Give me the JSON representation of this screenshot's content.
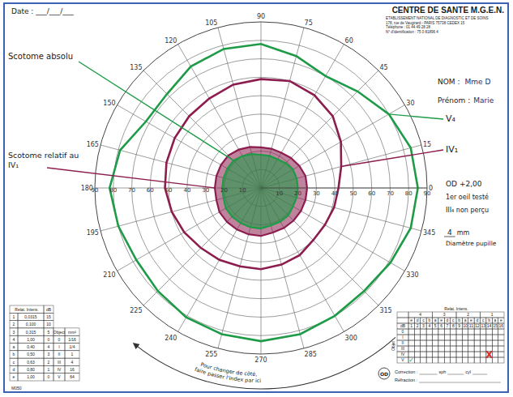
{
  "header": {
    "date": "Date : ___/___/___",
    "centre": "CENTRE DE SANTE M.G.E.N.",
    "centre_lines": [
      "ETABLISSEMENT NATIONAL DE DIAGNOSTIC ET DE SOINS",
      "178, rue de Vaugirard - PARIS 75738 CEDEX 15",
      "Téléphone : 01 44 49 28 28",
      "N° d'identification : 75 0 81896 4"
    ]
  },
  "patient": {
    "nom_label": "NOM :",
    "nom": "Mme D",
    "prenom_label": "Prénom :",
    "prenom": "Marie"
  },
  "notes": [
    "OD +2,00",
    "1er oeil testé",
    "III₄ non perçu"
  ],
  "pupil": {
    "value": 4,
    "unit": "mm",
    "label": "Diamètre pupille"
  },
  "chart_data": {
    "type": "polar",
    "theta": [
      0,
      15,
      30,
      45,
      60,
      75,
      90,
      105,
      120,
      135,
      150,
      165,
      180,
      195,
      210,
      225,
      240,
      255,
      270,
      285,
      300,
      315,
      330,
      345
    ],
    "thetaticks": [
      0,
      15,
      30,
      45,
      60,
      75,
      90,
      105,
      120,
      135,
      150,
      165,
      180,
      195,
      210,
      225,
      240,
      255,
      270,
      285,
      300,
      315,
      330,
      345
    ],
    "rlim": [
      0,
      90
    ],
    "rticks": [
      10,
      20,
      30,
      40,
      50,
      60,
      70,
      80,
      90
    ],
    "grid": true,
    "series": [
      {
        "name": "V₄",
        "color": "#1e9b47",
        "r": [
          85,
          84,
          80,
          74,
          70,
          74,
          78,
          78,
          76,
          72,
          72,
          79,
          82,
          80,
          78,
          79,
          81,
          82,
          83,
          82,
          80,
          79,
          81,
          84
        ]
      },
      {
        "name": "IV₁",
        "color": "#8c1d4e",
        "r": [
          42,
          45,
          50,
          55,
          58,
          60,
          59,
          58,
          56,
          55,
          54,
          53,
          52,
          50,
          48,
          46,
          45,
          44,
          44,
          43,
          42,
          40,
          40,
          41
        ]
      }
    ],
    "scotomas": [
      {
        "label": "Scotome relatif au IV₁",
        "color": "#8c1d4e",
        "r": [
          25,
          25,
          24,
          23,
          22,
          22,
          22,
          23,
          24,
          25,
          25,
          25,
          25,
          25,
          26,
          26,
          26,
          26,
          26,
          25,
          25,
          25,
          25,
          25
        ]
      },
      {
        "label": "Scotome absolu",
        "color": "#1e9b47",
        "r": [
          20,
          20,
          20,
          19,
          18,
          18,
          18,
          19,
          20,
          21,
          21,
          21,
          21,
          21,
          22,
          22,
          22,
          22,
          22,
          21,
          21,
          21,
          20,
          20
        ]
      }
    ]
  },
  "intensity_table": {
    "header": [
      "Relat. Intens.",
      "dB"
    ],
    "rows": [
      [
        "1",
        "0,0315",
        15
      ],
      [
        "2",
        "0,100",
        10
      ],
      [
        "3",
        "0,315",
        5
      ],
      [
        "4",
        "1,00",
        0
      ],
      [
        "a",
        "0,40",
        4
      ],
      [
        "b",
        "0,50",
        3
      ],
      [
        "c",
        "0,63",
        2
      ],
      [
        "d",
        "0,80",
        1
      ],
      [
        "e",
        "1,00",
        0
      ]
    ]
  },
  "object_table": {
    "header": [
      "Object",
      "mm²"
    ],
    "rows": [
      [
        "0",
        "1/16"
      ],
      [
        "I",
        "1/4"
      ],
      [
        "II",
        1
      ],
      [
        "III",
        4
      ],
      [
        "IV",
        16
      ],
      [
        "V",
        64
      ]
    ]
  },
  "relat_intens_grid": {
    "title": "Relat. Intens.",
    "groups": [
      "4",
      "3",
      "2",
      "1"
    ],
    "letters": [
      "e",
      "d",
      "c",
      "b",
      "a",
      "e",
      "d",
      "c",
      "b",
      "a",
      "e",
      "d",
      "c",
      "b",
      "a",
      "e"
    ],
    "db_label": "dB",
    "db": [
      1,
      2,
      3,
      4,
      5,
      6,
      7,
      8,
      9,
      10,
      11,
      12,
      13,
      14,
      15,
      16
    ],
    "object_label": "Objet",
    "objects": [
      "0",
      "I",
      "II",
      "III",
      "IV",
      "V"
    ],
    "marks": [
      {
        "object": "V",
        "db": 1,
        "text": "✓",
        "color": "#2a9d4a"
      },
      {
        "object": "IV",
        "db": 14,
        "text": "X",
        "color": "#d0312d"
      }
    ]
  },
  "side_note": [
    "Pour changer de côté,",
    "faire passer l'index par ici"
  ],
  "correction": {
    "eye": "OD",
    "correction": "Correction :",
    "sph": "sph",
    "cyl": "cyl",
    "refraction": "Réfraction :"
  },
  "form_code": "M050"
}
